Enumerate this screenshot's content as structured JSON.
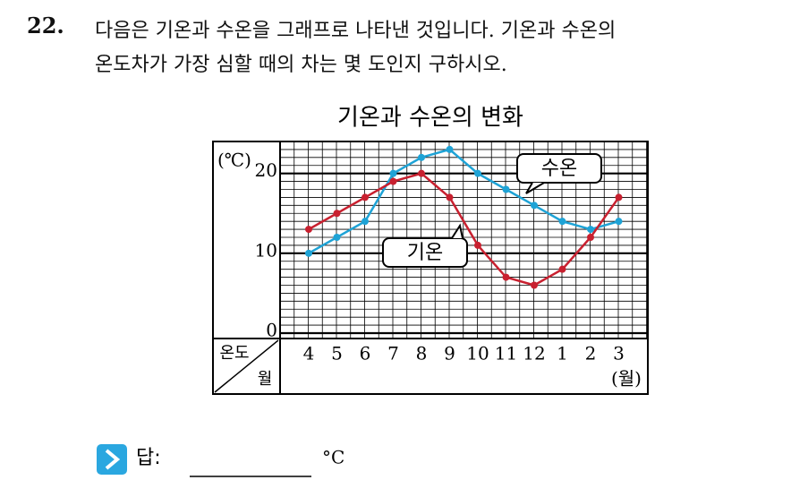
{
  "question": {
    "number": "22.",
    "lines": [
      "다음은 기온과 수온을 그래프로 나타낸 것입니다. 기온과 수온의",
      "온도차가 가장 심할 때의 차는 몇 도인지 구하시오."
    ]
  },
  "chart_data": {
    "type": "line",
    "title": "기온과 수온의 변화",
    "y_unit": "(℃)",
    "x_unit": "(월)",
    "corner_top": "온도",
    "corner_bottom": "월",
    "categories": [
      "4",
      "5",
      "6",
      "7",
      "8",
      "9",
      "10",
      "11",
      "12",
      "1",
      "2",
      "3"
    ],
    "series": [
      {
        "name": "수온",
        "color": "#1ea3d6",
        "values": [
          10,
          12,
          14,
          20,
          22,
          23,
          20,
          18,
          16,
          14,
          13,
          14
        ]
      },
      {
        "name": "기온",
        "color": "#c8202f",
        "values": [
          13,
          15,
          17,
          19,
          20,
          17,
          11,
          7,
          6,
          8,
          12,
          17
        ]
      }
    ],
    "ylim": [
      0,
      24
    ],
    "yticks": [
      0,
      10,
      20
    ],
    "grid": true
  },
  "answer": {
    "label": "답:",
    "unit": "°C"
  }
}
